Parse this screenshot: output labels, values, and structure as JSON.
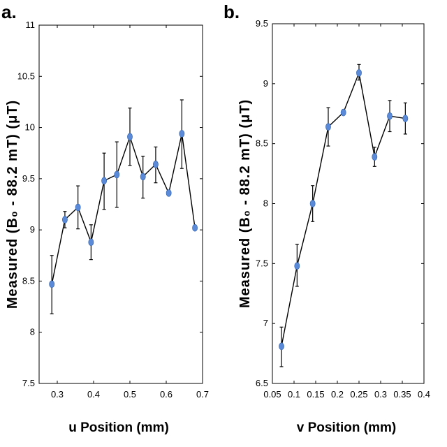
{
  "chart_data": [
    {
      "panel": "a.",
      "type": "scatter",
      "title": "",
      "xlabel": "u Position (mm)",
      "ylabel": "Measured (B₀ - 88.2 mT) (μT)",
      "xlim": [
        0.25,
        0.7
      ],
      "ylim": [
        7.5,
        11
      ],
      "xticks": [
        "0.3",
        "0.4",
        "0.5",
        "0.6",
        "0.7"
      ],
      "xtick_values": [
        0.3,
        0.4,
        0.5,
        0.6,
        0.7
      ],
      "yticks": [
        "7.5",
        "8",
        "8.5",
        "9",
        "9.5",
        "10",
        "10.5",
        "11"
      ],
      "ytick_values": [
        7.5,
        8,
        8.5,
        9,
        9.5,
        10,
        10.5,
        11
      ],
      "grid": false,
      "series": [
        {
          "marker_color": "#5b8bd8",
          "line_color": "#000000",
          "x": [
            0.285,
            0.321,
            0.357,
            0.393,
            0.429,
            0.464,
            0.5,
            0.536,
            0.571,
            0.607,
            0.643,
            0.679
          ],
          "y": [
            8.47,
            9.1,
            9.22,
            8.88,
            9.48,
            9.54,
            9.91,
            9.52,
            9.64,
            9.36,
            9.94,
            9.02
          ],
          "err_low": [
            8.18,
            9.02,
            9.01,
            8.71,
            9.2,
            9.22,
            9.63,
            9.31,
            9.46,
            9.36,
            9.6,
            9.02
          ],
          "err_high": [
            8.75,
            9.18,
            9.43,
            9.05,
            9.75,
            9.86,
            10.19,
            9.72,
            9.81,
            9.36,
            10.27,
            9.02
          ]
        }
      ]
    },
    {
      "panel": "b.",
      "type": "scatter",
      "title": "",
      "xlabel": "v Position (mm)",
      "ylabel": "Measured (B₀ - 88.2 mT) (μT)",
      "xlim": [
        0.05,
        0.4
      ],
      "ylim": [
        6.5,
        9.5
      ],
      "xticks": [
        "0.05",
        "0.1",
        "0.15",
        "0.2",
        "0.25",
        "0.3",
        "0.35",
        "0.4"
      ],
      "xtick_values": [
        0.05,
        0.1,
        0.15,
        0.2,
        0.25,
        0.3,
        0.35,
        0.4
      ],
      "yticks": [
        "6.5",
        "7",
        "7.5",
        "8",
        "8.5",
        "9",
        "9.5"
      ],
      "ytick_values": [
        6.5,
        7,
        7.5,
        8,
        8.5,
        9,
        9.5
      ],
      "grid": false,
      "series": [
        {
          "marker_color": "#5b8bd8",
          "line_color": "#000000",
          "x": [
            0.071,
            0.107,
            0.143,
            0.179,
            0.214,
            0.25,
            0.286,
            0.321,
            0.357
          ],
          "y": [
            6.81,
            7.48,
            8.0,
            8.64,
            8.76,
            9.09,
            8.39,
            8.73,
            8.71
          ],
          "err_low": [
            6.64,
            7.31,
            7.85,
            8.48,
            8.76,
            9.03,
            8.31,
            8.6,
            8.58
          ],
          "err_high": [
            6.97,
            7.66,
            8.15,
            8.8,
            8.76,
            9.16,
            8.47,
            8.86,
            8.84
          ]
        }
      ]
    }
  ]
}
